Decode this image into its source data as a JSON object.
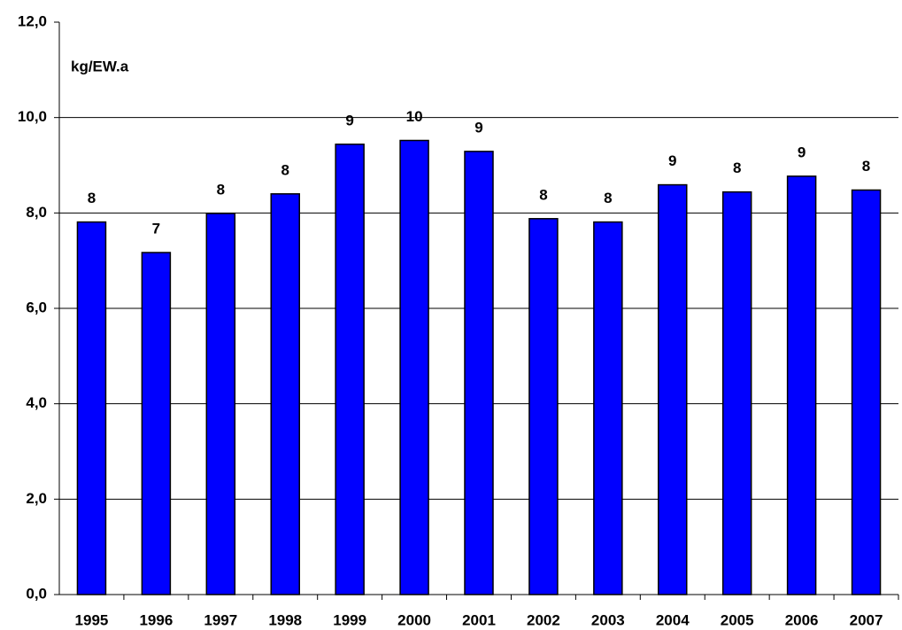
{
  "chart_data": {
    "type": "bar",
    "annotation": "kg/EW.a",
    "categories": [
      "1995",
      "1996",
      "1997",
      "1998",
      "1999",
      "2000",
      "2001",
      "2002",
      "2003",
      "2004",
      "2005",
      "2006",
      "2007"
    ],
    "values": [
      7.81,
      7.17,
      7.99,
      8.4,
      9.44,
      9.52,
      9.29,
      7.88,
      7.81,
      8.59,
      8.44,
      8.77,
      8.48
    ],
    "value_labels": [
      "8",
      "7",
      "8",
      "8",
      "9",
      "10",
      "9",
      "8",
      "8",
      "9",
      "8",
      "9",
      "8"
    ],
    "color": "#0000ff",
    "ylim": [
      0,
      12
    ],
    "yticks": [
      {
        "value": 0,
        "label": "0,0"
      },
      {
        "value": 2,
        "label": "2,0"
      },
      {
        "value": 4,
        "label": "4,0"
      },
      {
        "value": 6,
        "label": "6,0"
      },
      {
        "value": 8,
        "label": "8,0"
      },
      {
        "value": 10,
        "label": "10,0"
      },
      {
        "value": 12,
        "label": "12,0"
      }
    ],
    "grid": true
  }
}
